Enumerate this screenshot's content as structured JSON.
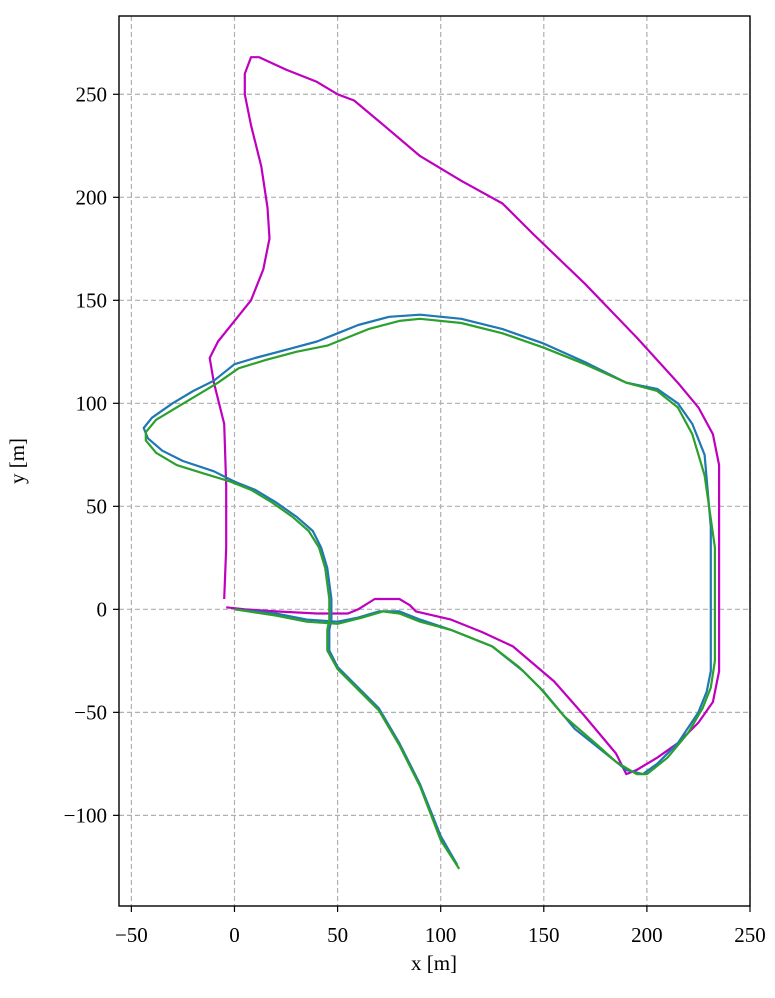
{
  "chart_data": {
    "type": "line",
    "xlabel": "x [m]",
    "ylabel": "y [m]",
    "xlim": [
      -56,
      250
    ],
    "ylim": [
      -144,
      288
    ],
    "xticks": [
      {
        "value": -50,
        "label": "−50"
      },
      0,
      50,
      100,
      150,
      200,
      250
    ],
    "yticks": [
      {
        "value": -100,
        "label": "−100"
      },
      {
        "value": -50,
        "label": "−50"
      },
      0,
      50,
      100,
      150,
      200,
      250
    ],
    "grid": true,
    "series": [
      {
        "color": "#bf00bf",
        "x": [
          -5,
          -4,
          -4,
          -5,
          -10,
          -12,
          -8,
          0,
          8,
          14,
          17,
          16,
          13,
          8,
          5,
          5,
          8,
          12,
          25,
          40,
          50,
          58,
          70,
          90,
          110,
          130,
          145,
          170,
          195,
          215,
          225,
          232,
          235,
          235,
          235,
          232,
          225,
          215,
          205,
          195,
          190,
          185,
          170,
          155,
          135,
          120,
          105,
          88,
          85,
          80,
          68,
          60,
          55,
          40,
          20,
          5,
          -4
        ],
        "values": [
          5,
          30,
          60,
          90,
          110,
          122,
          130,
          140,
          150,
          165,
          180,
          195,
          215,
          235,
          250,
          260,
          268,
          268,
          262,
          256,
          250,
          247,
          237,
          220,
          208,
          197,
          182,
          158,
          132,
          110,
          98,
          85,
          70,
          30,
          -30,
          -45,
          -55,
          -65,
          -72,
          -78,
          -80,
          -70,
          -52,
          -35,
          -18,
          -11,
          -5,
          -1,
          2,
          5,
          5,
          0,
          -2,
          -2,
          -1,
          0,
          1
        ]
      },
      {
        "color": "#1f77b4",
        "x": [
          108,
          100,
          90,
          80,
          70,
          60,
          50,
          46,
          46,
          47,
          47,
          45,
          42,
          38,
          30,
          20,
          10,
          0,
          -10,
          -25,
          -35,
          -42,
          -44,
          -40,
          -30,
          -20,
          -10,
          0,
          10,
          25,
          40,
          50,
          60,
          75,
          90,
          110,
          130,
          150,
          170,
          190,
          205,
          215,
          222,
          228,
          231,
          231,
          231,
          229,
          225,
          215,
          205,
          198,
          190,
          180,
          165,
          150,
          140,
          125,
          105,
          90,
          80,
          70,
          60,
          50,
          35,
          20,
          0
        ],
        "values": [
          -124,
          -110,
          -85,
          -65,
          -48,
          -38,
          -28,
          -20,
          -10,
          -5,
          5,
          20,
          30,
          38,
          45,
          52,
          58,
          62,
          67,
          72,
          77,
          83,
          88,
          93,
          100,
          106,
          111,
          119,
          122,
          126,
          130,
          134,
          138,
          142,
          143,
          141,
          136,
          129,
          120,
          110,
          107,
          100,
          90,
          75,
          40,
          0,
          -30,
          -40,
          -50,
          -65,
          -75,
          -80,
          -78,
          -70,
          -58,
          -40,
          -30,
          -18,
          -10,
          -5,
          -1,
          -1,
          -4,
          -6,
          -5,
          -2,
          0
        ]
      },
      {
        "color": "#2ca02c",
        "x": [
          109,
          100,
          90,
          80,
          70,
          60,
          50,
          45,
          45,
          46,
          46,
          44,
          41,
          36,
          28,
          18,
          8,
          -2,
          -15,
          -28,
          -38,
          -43,
          -43,
          -38,
          -28,
          -18,
          -8,
          2,
          15,
          30,
          45,
          55,
          65,
          80,
          90,
          110,
          130,
          150,
          170,
          190,
          205,
          215,
          222,
          228,
          233,
          233,
          233,
          231,
          227,
          220,
          210,
          200,
          195,
          185,
          175,
          160,
          148,
          138,
          125,
          105,
          90,
          80,
          72,
          62,
          50,
          35,
          20,
          0
        ],
        "values": [
          -126,
          -112,
          -86,
          -66,
          -49,
          -39,
          -29,
          -20,
          -10,
          -5,
          5,
          20,
          30,
          38,
          45,
          52,
          58,
          62,
          66,
          70,
          76,
          82,
          86,
          92,
          98,
          104,
          110,
          117,
          121,
          125,
          128,
          132,
          136,
          140,
          141,
          139,
          134,
          127,
          119,
          110,
          106,
          98,
          85,
          65,
          30,
          0,
          -25,
          -38,
          -48,
          -60,
          -72,
          -80,
          -80,
          -74,
          -65,
          -52,
          -38,
          -28,
          -18,
          -10,
          -6,
          -2,
          -1,
          -4,
          -7,
          -6,
          -3,
          0
        ]
      }
    ]
  }
}
